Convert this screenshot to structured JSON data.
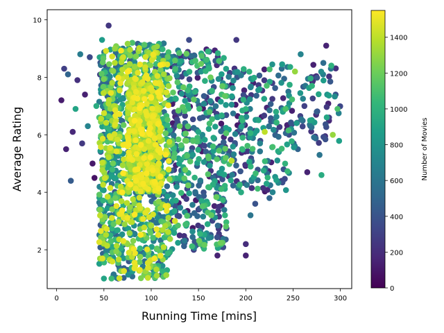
{
  "chart_data": {
    "type": "scatter",
    "title": "",
    "xlabel": "Running Time [mins]",
    "ylabel": "Average Rating",
    "xlim": [
      -10,
      312
    ],
    "ylim": [
      0.65,
      10.35
    ],
    "x_ticks": [
      0,
      50,
      100,
      150,
      200,
      250,
      300
    ],
    "y_ticks": [
      2,
      4,
      6,
      8,
      10
    ],
    "grid": false,
    "legend": "none",
    "marker_color_by": "Number of Movies",
    "colormap": "viridis",
    "colorbar": {
      "label": "Number of Movies",
      "range": [
        0,
        1550
      ],
      "ticks": [
        0,
        200,
        400,
        600,
        800,
        1000,
        1200,
        1400
      ],
      "colors": [
        "#440154",
        "#482878",
        "#3e4989",
        "#31688e",
        "#26828e",
        "#1f9e89",
        "#35b779",
        "#6ece58",
        "#b5de2b",
        "#fde725"
      ]
    },
    "points": [
      {
        "x": 5,
        "y": 7.2,
        "c": 120
      },
      {
        "x": 8,
        "y": 8.3,
        "c": 300
      },
      {
        "x": 10,
        "y": 5.5,
        "c": 150
      },
      {
        "x": 12,
        "y": 8.1,
        "c": 500
      },
      {
        "x": 15,
        "y": 4.4,
        "c": 450
      },
      {
        "x": 17,
        "y": 6.1,
        "c": 180
      },
      {
        "x": 20,
        "y": 6.9,
        "c": 900
      },
      {
        "x": 22,
        "y": 7.9,
        "c": 220
      },
      {
        "x": 25,
        "y": 8.8,
        "c": 650
      },
      {
        "x": 27,
        "y": 5.7,
        "c": 260
      },
      {
        "x": 30,
        "y": 7.4,
        "c": 140
      },
      {
        "x": 33,
        "y": 6.3,
        "c": 700
      },
      {
        "x": 35,
        "y": 8.7,
        "c": 350
      },
      {
        "x": 38,
        "y": 5.0,
        "c": 100
      },
      {
        "x": 40,
        "y": 4.5,
        "c": 80
      },
      {
        "x": 42,
        "y": 7.0,
        "c": 950
      },
      {
        "x": 45,
        "y": 6.6,
        "c": 1100
      },
      {
        "x": 48,
        "y": 9.3,
        "c": 850
      },
      {
        "x": 50,
        "y": 1.0,
        "c": 900
      },
      {
        "x": 52,
        "y": 1.8,
        "c": 400
      },
      {
        "x": 55,
        "y": 9.8,
        "c": 250
      },
      {
        "x": 58,
        "y": 1.0,
        "c": 1050
      },
      {
        "x": 60,
        "y": 2.6,
        "c": 700
      },
      {
        "x": 62,
        "y": 3.8,
        "c": 1200
      },
      {
        "x": 65,
        "y": 1.0,
        "c": 300
      },
      {
        "x": 70,
        "y": 9.0,
        "c": 600
      },
      {
        "x": 75,
        "y": 1.3,
        "c": 500
      },
      {
        "x": 80,
        "y": 9.2,
        "c": 1100
      },
      {
        "x": 88,
        "y": 1.3,
        "c": 1500
      },
      {
        "x": 95,
        "y": 9.1,
        "c": 700
      },
      {
        "x": 110,
        "y": 1.6,
        "c": 450
      },
      {
        "x": 120,
        "y": 8.6,
        "c": 900
      },
      {
        "x": 125,
        "y": 3.0,
        "c": 1450
      },
      {
        "x": 130,
        "y": 2.5,
        "c": 200
      },
      {
        "x": 140,
        "y": 9.3,
        "c": 350
      },
      {
        "x": 145,
        "y": 2.0,
        "c": 300
      },
      {
        "x": 150,
        "y": 3.4,
        "c": 250
      },
      {
        "x": 155,
        "y": 2.1,
        "c": 500
      },
      {
        "x": 160,
        "y": 8.9,
        "c": 1000
      },
      {
        "x": 165,
        "y": 3.3,
        "c": 900
      },
      {
        "x": 170,
        "y": 1.8,
        "c": 150
      },
      {
        "x": 178,
        "y": 3.2,
        "c": 1000
      },
      {
        "x": 185,
        "y": 5.1,
        "c": 1400
      },
      {
        "x": 190,
        "y": 9.3,
        "c": 250
      },
      {
        "x": 195,
        "y": 4.0,
        "c": 950
      },
      {
        "x": 200,
        "y": 2.2,
        "c": 200
      },
      {
        "x": 200,
        "y": 1.8,
        "c": 150
      },
      {
        "x": 205,
        "y": 3.2,
        "c": 600
      },
      {
        "x": 210,
        "y": 3.6,
        "c": 400
      },
      {
        "x": 215,
        "y": 5.7,
        "c": 700
      },
      {
        "x": 220,
        "y": 6.1,
        "c": 1400
      },
      {
        "x": 222,
        "y": 4.3,
        "c": 900
      },
      {
        "x": 225,
        "y": 3.8,
        "c": 500
      },
      {
        "x": 228,
        "y": 7.8,
        "c": 300
      },
      {
        "x": 232,
        "y": 6.8,
        "c": 950
      },
      {
        "x": 235,
        "y": 5.4,
        "c": 800
      },
      {
        "x": 238,
        "y": 8.3,
        "c": 550
      },
      {
        "x": 240,
        "y": 4.8,
        "c": 400
      },
      {
        "x": 242,
        "y": 6.9,
        "c": 1100
      },
      {
        "x": 245,
        "y": 7.5,
        "c": 600
      },
      {
        "x": 248,
        "y": 6.2,
        "c": 800
      },
      {
        "x": 252,
        "y": 8.2,
        "c": 1300
      },
      {
        "x": 255,
        "y": 5.5,
        "c": 500
      },
      {
        "x": 258,
        "y": 8.8,
        "c": 700
      },
      {
        "x": 262,
        "y": 7.0,
        "c": 300
      },
      {
        "x": 265,
        "y": 4.7,
        "c": 150
      },
      {
        "x": 268,
        "y": 6.5,
        "c": 900
      },
      {
        "x": 270,
        "y": 7.7,
        "c": 1000
      },
      {
        "x": 272,
        "y": 8.0,
        "c": 200
      },
      {
        "x": 275,
        "y": 6.8,
        "c": 450
      },
      {
        "x": 278,
        "y": 5.3,
        "c": 600
      },
      {
        "x": 280,
        "y": 4.6,
        "c": 950
      },
      {
        "x": 282,
        "y": 8.5,
        "c": 550
      },
      {
        "x": 285,
        "y": 9.1,
        "c": 150
      },
      {
        "x": 286,
        "y": 7.4,
        "c": 800
      },
      {
        "x": 288,
        "y": 6.6,
        "c": 300
      },
      {
        "x": 290,
        "y": 8.3,
        "c": 600
      },
      {
        "x": 292,
        "y": 6.0,
        "c": 1300
      },
      {
        "x": 295,
        "y": 7.4,
        "c": 400
      },
      {
        "x": 297,
        "y": 6.9,
        "c": 1100
      }
    ],
    "density_regions": [
      {
        "x_range": [
          45,
          60
        ],
        "y_range": [
          1.5,
          9.0
        ],
        "count": 260,
        "c_range": [
          300,
          1500
        ]
      },
      {
        "x_range": [
          60,
          120
        ],
        "y_range": [
          1.0,
          9.2
        ],
        "count": 900,
        "c_range": [
          400,
          1550
        ]
      },
      {
        "x_range": [
          75,
          110
        ],
        "y_range": [
          4.0,
          8.0
        ],
        "count": 450,
        "c_range": [
          1150,
          1550
        ]
      },
      {
        "x_range": [
          120,
          180
        ],
        "y_range": [
          2.0,
          9.0
        ],
        "count": 450,
        "c_range": [
          100,
          1200
        ]
      },
      {
        "x_range": [
          180,
          250
        ],
        "y_range": [
          4.0,
          8.5
        ],
        "count": 200,
        "c_range": [
          100,
          1100
        ]
      },
      {
        "x_range": [
          250,
          300
        ],
        "y_range": [
          5.5,
          8.5
        ],
        "count": 60,
        "c_range": [
          100,
          1000
        ]
      }
    ]
  }
}
